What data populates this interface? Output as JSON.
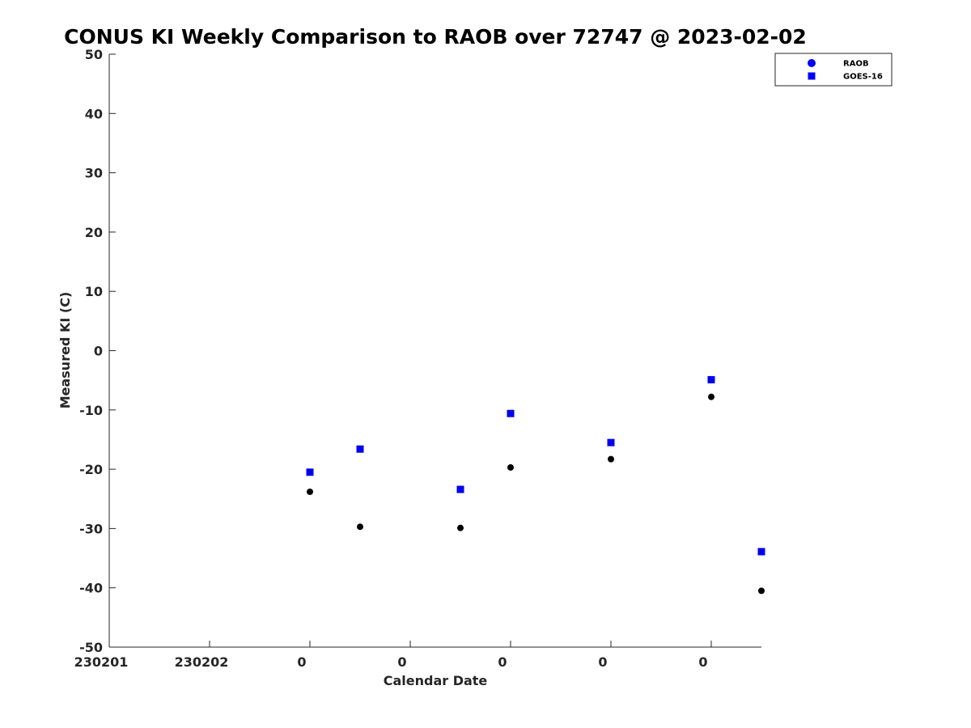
{
  "chart_data": {
    "type": "scatter",
    "title": "CONUS KI Weekly Comparison to RAOB over 72747 @ 2023-02-02",
    "xlabel": "Calendar Date",
    "ylabel": "Measured KI (C)",
    "ylim": [
      -50,
      50
    ],
    "xlim": [
      0,
      6.5
    ],
    "x_ticks": [
      {
        "x": 0,
        "label": "230201"
      },
      {
        "x": 1,
        "label": "230202"
      },
      {
        "x": 2,
        "label": "0"
      },
      {
        "x": 3,
        "label": "0"
      },
      {
        "x": 4,
        "label": "0"
      },
      {
        "x": 5,
        "label": "0"
      },
      {
        "x": 6,
        "label": "0"
      }
    ],
    "y_ticks": [
      50,
      40,
      30,
      20,
      10,
      0,
      -10,
      -20,
      -30,
      -40,
      -50
    ],
    "grid": false,
    "legend_position": "top-right",
    "series": [
      {
        "name": "RAOB",
        "marker": "circle",
        "color": "#000000",
        "legend_color": "#0000ff",
        "points": [
          {
            "x": 2.0,
            "y": -23.8
          },
          {
            "x": 2.5,
            "y": -29.7
          },
          {
            "x": 3.5,
            "y": -29.9
          },
          {
            "x": 4.0,
            "y": -19.7
          },
          {
            "x": 5.0,
            "y": -18.3
          },
          {
            "x": 6.0,
            "y": -7.8
          },
          {
            "x": 6.5,
            "y": -40.5
          }
        ]
      },
      {
        "name": "GOES-16",
        "marker": "square",
        "color": "#0000ee",
        "legend_color": "#0000ff",
        "points": [
          {
            "x": 2.0,
            "y": -20.5
          },
          {
            "x": 2.5,
            "y": -16.6
          },
          {
            "x": 3.5,
            "y": -23.4
          },
          {
            "x": 4.0,
            "y": -10.6
          },
          {
            "x": 5.0,
            "y": -15.5
          },
          {
            "x": 6.0,
            "y": -4.9
          },
          {
            "x": 6.5,
            "y": -33.9
          }
        ]
      }
    ]
  }
}
